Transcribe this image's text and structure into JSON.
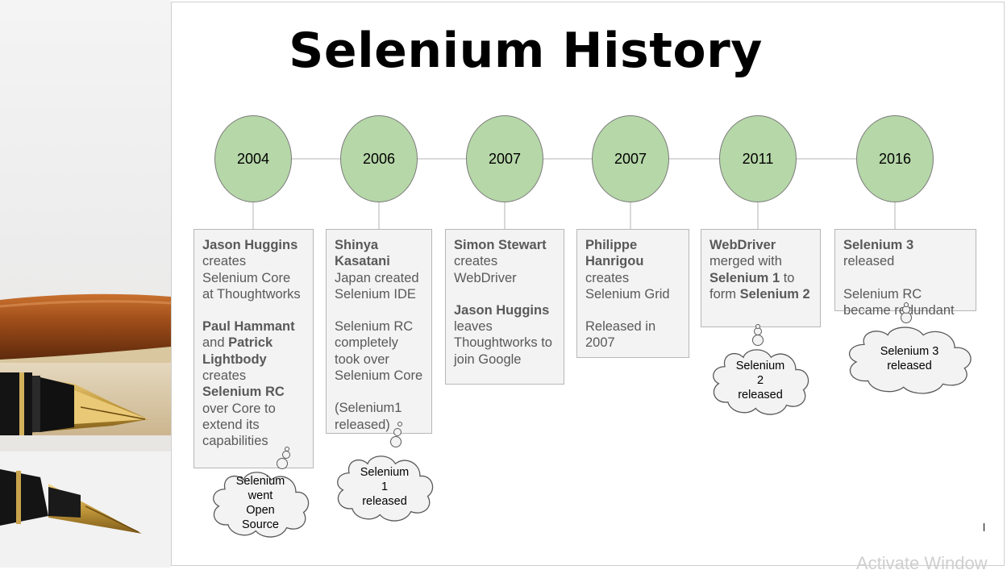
{
  "title": "Selenium History",
  "watermark": "Activate Window",
  "colors": {
    "circle_fill": "#b6d7a8",
    "box_fill": "#f3f3f3",
    "box_text": "#595959",
    "connector": "#d9d9d9"
  },
  "timeline": [
    {
      "year": "2004",
      "desc": [
        [
          {
            "t": "Jason Huggins",
            "b": true
          },
          {
            "t": " creates Selenium Core at Thoughtworks",
            "b": false
          }
        ],
        [
          {
            "t": "Paul Hammant",
            "b": true
          },
          {
            "t": " and ",
            "b": false
          },
          {
            "t": "Patrick Lightbody",
            "b": true
          },
          {
            "t": " creates ",
            "b": false
          },
          {
            "t": "Selenium RC",
            "b": true
          },
          {
            "t": " over Core to extend its capabilities",
            "b": false
          }
        ]
      ],
      "cloud": [
        "Selenium",
        "went",
        "Open",
        "Source"
      ]
    },
    {
      "year": "2006",
      "desc": [
        [
          {
            "t": "Shinya Kasatani",
            "b": true
          },
          {
            "t": " Japan created Selenium IDE",
            "b": false
          }
        ],
        [
          {
            "t": "Selenium RC completely took over Selenium Core",
            "b": false
          }
        ],
        [
          {
            "t": "(Selenium1 released)",
            "b": false
          }
        ]
      ],
      "cloud": [
        "Selenium",
        "1",
        "released"
      ]
    },
    {
      "year": "2007",
      "desc": [
        [
          {
            "t": "Simon Stewart",
            "b": true
          },
          {
            "t": " creates WebDriver",
            "b": false
          }
        ],
        [
          {
            "t": "Jason Huggins",
            "b": true
          },
          {
            "t": " leaves Thoughtworks to join Google",
            "b": false
          }
        ]
      ],
      "cloud": []
    },
    {
      "year": "2007",
      "desc": [
        [
          {
            "t": "Philippe Hanrigou",
            "b": true
          },
          {
            "t": " creates Selenium Grid",
            "b": false
          }
        ],
        [
          {
            "t": "Released in 2007",
            "b": false
          }
        ]
      ],
      "cloud": []
    },
    {
      "year": "2011",
      "desc": [
        [
          {
            "t": "WebDriver",
            "b": true
          },
          {
            "t": " merged with ",
            "b": false
          },
          {
            "t": "Selenium 1",
            "b": true
          },
          {
            "t": " to form ",
            "b": false
          },
          {
            "t": "Selenium 2",
            "b": true
          }
        ]
      ],
      "cloud": [
        "Selenium",
        "2",
        "released"
      ]
    },
    {
      "year": "2016",
      "desc": [
        [
          {
            "t": "Selenium 3",
            "b": true
          },
          {
            "t": " released",
            "b": false
          }
        ],
        [
          {
            "t": "Selenium RC became redundant",
            "b": false
          }
        ]
      ],
      "cloud": [
        "Selenium 3",
        "released"
      ]
    }
  ]
}
